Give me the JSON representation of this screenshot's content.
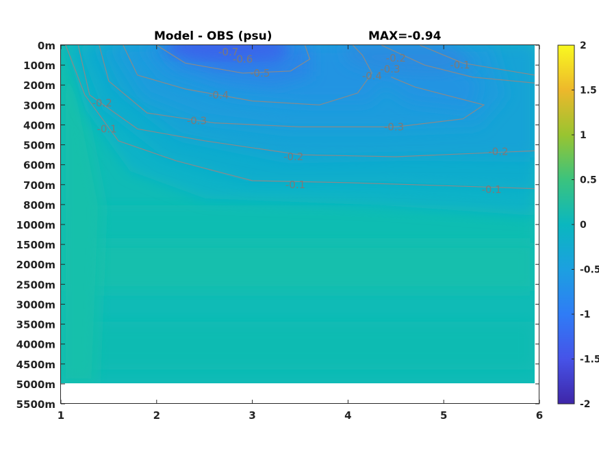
{
  "chart_data": {
    "type": "heatmap",
    "title_left": "Model - OBS (psu)",
    "title_right": "MAX=-0.94",
    "x_ticks": [
      1,
      2,
      3,
      4,
      5,
      6
    ],
    "xlim": [
      1,
      6
    ],
    "y_ticks": [
      "0m",
      "100m",
      "200m",
      "300m",
      "400m",
      "500m",
      "600m",
      "700m",
      "800m",
      "1000m",
      "1500m",
      "2000m",
      "2500m",
      "3000m",
      "3500m",
      "4000m",
      "4500m",
      "5000m",
      "5500m"
    ],
    "data_bottom_depth": "5000m",
    "colorbar": {
      "ticks": [
        "2",
        "1.5",
        "1",
        "0.5",
        "0",
        "-0.5",
        "-1",
        "-1.5",
        "-2"
      ],
      "range": [
        -2,
        2
      ],
      "colormap": "parula"
    },
    "contours": [
      {
        "level": -0.1,
        "labels": [
          {
            "x": 1.48,
            "depth_index": 4.2
          },
          {
            "x": 3.45,
            "depth_index": 7.0
          },
          {
            "x": 5.5,
            "depth_index": 7.25
          },
          {
            "x": 5.17,
            "depth_index": 1.0
          }
        ],
        "lines": [
          [
            [
              1.05,
              0
            ],
            [
              1.25,
              2.5
            ],
            [
              1.6,
              4.8
            ],
            [
              2.2,
              5.8
            ],
            [
              3.0,
              6.8
            ],
            [
              4.0,
              6.9
            ],
            [
              5.0,
              7.05
            ],
            [
              5.95,
              7.2
            ]
          ],
          [
            [
              4.75,
              0
            ],
            [
              5.2,
              0.9
            ],
            [
              5.95,
              1.5
            ]
          ]
        ]
      },
      {
        "level": -0.2,
        "labels": [
          {
            "x": 1.43,
            "depth_index": 2.9
          },
          {
            "x": 3.43,
            "depth_index": 5.6
          },
          {
            "x": 5.57,
            "depth_index": 5.35
          },
          {
            "x": 4.5,
            "depth_index": 0.65
          }
        ],
        "lines": [
          [
            [
              1.18,
              0
            ],
            [
              1.3,
              2.5
            ],
            [
              1.8,
              4.2
            ],
            [
              2.5,
              4.8
            ],
            [
              3.5,
              5.5
            ],
            [
              4.5,
              5.6
            ],
            [
              5.95,
              5.3
            ]
          ],
          [
            [
              4.35,
              0
            ],
            [
              4.8,
              1.0
            ],
            [
              5.3,
              1.6
            ],
            [
              5.95,
              1.9
            ]
          ]
        ]
      },
      {
        "level": -0.3,
        "labels": [
          {
            "x": 2.42,
            "depth_index": 3.8
          },
          {
            "x": 4.48,
            "depth_index": 4.1
          },
          {
            "x": 4.44,
            "depth_index": 1.2
          }
        ],
        "lines": [
          [
            [
              1.4,
              0
            ],
            [
              1.5,
              1.8
            ],
            [
              1.9,
              3.4
            ],
            [
              2.6,
              3.9
            ],
            [
              3.5,
              4.1
            ],
            [
              4.5,
              4.1
            ],
            [
              5.2,
              3.7
            ],
            [
              5.42,
              3.0
            ],
            [
              5.1,
              2.6
            ],
            [
              4.7,
              2.1
            ],
            [
              4.45,
              1.6
            ]
          ]
        ]
      },
      {
        "level": -0.4,
        "labels": [
          {
            "x": 2.65,
            "depth_index": 2.5
          },
          {
            "x": 4.25,
            "depth_index": 1.55
          }
        ],
        "lines": [
          [
            [
              1.65,
              0
            ],
            [
              1.8,
              1.5
            ],
            [
              2.3,
              2.2
            ],
            [
              3.0,
              2.8
            ],
            [
              3.7,
              3.0
            ],
            [
              4.1,
              2.4
            ],
            [
              4.25,
              1.4
            ],
            [
              4.15,
              0.5
            ],
            [
              4.05,
              0
            ]
          ]
        ]
      },
      {
        "level": -0.5,
        "labels": [
          {
            "x": 3.08,
            "depth_index": 1.4
          }
        ],
        "lines": [
          [
            [
              2.0,
              0
            ],
            [
              2.3,
              0.9
            ],
            [
              2.9,
              1.4
            ],
            [
              3.4,
              1.3
            ],
            [
              3.6,
              0.7
            ],
            [
              3.55,
              0
            ]
          ]
        ]
      },
      {
        "level": -0.6,
        "labels": [
          {
            "x": 2.9,
            "depth_index": 0.7
          }
        ],
        "lines": []
      },
      {
        "level": -0.7,
        "labels": [
          {
            "x": 2.75,
            "depth_index": 0.35
          }
        ],
        "lines": []
      }
    ]
  }
}
